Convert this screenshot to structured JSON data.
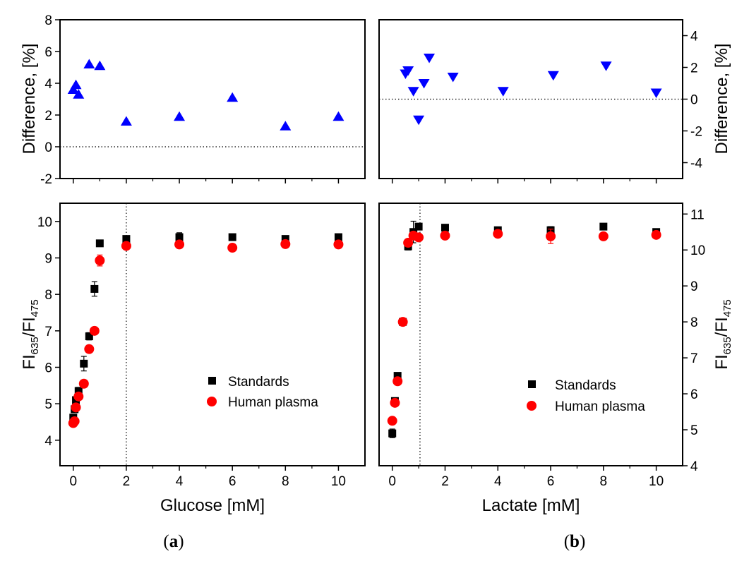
{
  "chart_data": [
    {
      "id": "a_top",
      "type": "scatter",
      "ylabel": "Difference, [%]",
      "xlim": [
        -0.5,
        11
      ],
      "ylim": [
        -2,
        8
      ],
      "yticks": [
        -2,
        0,
        2,
        4,
        6,
        8
      ],
      "xticks": [
        0,
        2,
        4,
        6,
        8,
        10
      ],
      "ref_hline": 0,
      "series": [
        {
          "name": "Difference",
          "marker": "triangle-up",
          "color": "#0000ff",
          "x": [
            0,
            0.1,
            0.2,
            0.6,
            1,
            2,
            4,
            6,
            8,
            10
          ],
          "y": [
            3.6,
            3.9,
            3.3,
            5.2,
            5.1,
            1.6,
            1.9,
            3.1,
            1.3,
            1.9
          ]
        }
      ]
    },
    {
      "id": "b_top",
      "type": "scatter",
      "ylabel": "Difference, [%]",
      "xlim": [
        -0.5,
        11
      ],
      "ylim": [
        -5,
        5
      ],
      "yticks": [
        -4,
        -2,
        0,
        2,
        4
      ],
      "xticks": [
        0,
        2,
        4,
        6,
        8,
        10
      ],
      "ref_hline": 0,
      "series": [
        {
          "name": "Difference",
          "marker": "triangle-down",
          "color": "#0000ff",
          "x": [
            0.5,
            0.6,
            0.8,
            1.0,
            1.2,
            1.4,
            2.3,
            4.2,
            6.1,
            8.1,
            10
          ],
          "y": [
            1.6,
            1.8,
            0.5,
            -1.3,
            1.0,
            2.6,
            1.4,
            0.5,
            1.5,
            2.1,
            0.4
          ]
        }
      ]
    },
    {
      "id": "a_bottom",
      "type": "scatter",
      "xlabel": "Glucose [mM]",
      "ylabel": "FI635/FI475",
      "xlim": [
        -0.5,
        11
      ],
      "ylim": [
        3.3,
        10.5
      ],
      "yticks": [
        4,
        5,
        6,
        7,
        8,
        9,
        10
      ],
      "xticks": [
        0,
        2,
        4,
        6,
        8,
        10
      ],
      "ref_vline": 2,
      "legend": "bottom-right",
      "series": [
        {
          "name": "Standards",
          "marker": "square",
          "color": "#000000",
          "x": [
            0,
            0.05,
            0.1,
            0.2,
            0.4,
            0.6,
            0.8,
            1,
            2,
            4,
            6,
            8,
            10
          ],
          "y": [
            4.62,
            4.85,
            5.1,
            5.35,
            6.1,
            6.85,
            8.15,
            9.4,
            9.52,
            9.57,
            9.57,
            9.52,
            9.57
          ],
          "err": [
            0.05,
            0.05,
            0.08,
            0.1,
            0.2,
            0.1,
            0.2,
            0.05,
            0.05,
            0.12,
            0.05,
            0.05,
            0.05
          ]
        },
        {
          "name": "Human plasma",
          "marker": "circle",
          "color": "#ff0000",
          "x": [
            0,
            0.05,
            0.1,
            0.2,
            0.4,
            0.6,
            0.8,
            1,
            2,
            4,
            6,
            8,
            10
          ],
          "y": [
            4.47,
            4.52,
            4.9,
            5.2,
            5.55,
            6.5,
            7.0,
            8.93,
            9.33,
            9.37,
            9.28,
            9.38,
            9.37
          ],
          "err": [
            0.05,
            0.05,
            0.05,
            0.05,
            0.05,
            0.05,
            0.05,
            0.15,
            0.1,
            0.05,
            0.05,
            0.08,
            0.05
          ]
        }
      ]
    },
    {
      "id": "b_bottom",
      "type": "scatter",
      "xlabel": "Lactate [mM]",
      "ylabel": "FI635/FI475",
      "xlim": [
        -0.5,
        11
      ],
      "ylim": [
        4,
        11.3
      ],
      "yticks": [
        4,
        5,
        6,
        7,
        8,
        9,
        10,
        11
      ],
      "xticks": [
        0,
        2,
        4,
        6,
        8,
        10
      ],
      "ref_vline": 1.05,
      "legend": "bottom-right",
      "series": [
        {
          "name": "Standards",
          "marker": "square",
          "color": "#000000",
          "x": [
            0,
            0.1,
            0.2,
            0.4,
            0.6,
            0.8,
            1,
            2,
            4,
            6,
            8,
            10
          ],
          "y": [
            4.9,
            5.8,
            6.5,
            8.0,
            10.1,
            10.5,
            10.65,
            10.62,
            10.55,
            10.55,
            10.65,
            10.5
          ],
          "err": [
            0.12,
            0.05,
            0.05,
            0.05,
            0.1,
            0.3,
            0.05,
            0.05,
            0.05,
            0.1,
            0.05,
            0.05
          ]
        },
        {
          "name": "Human plasma",
          "marker": "circle",
          "color": "#ff0000",
          "x": [
            0,
            0.1,
            0.2,
            0.4,
            0.6,
            0.8,
            1,
            2,
            4,
            6,
            8,
            10
          ],
          "y": [
            5.25,
            5.75,
            6.35,
            8.0,
            10.2,
            10.4,
            10.35,
            10.4,
            10.45,
            10.38,
            10.38,
            10.42
          ],
          "err": [
            0.05,
            0.05,
            0.05,
            0.05,
            0.05,
            0.05,
            0.05,
            0.1,
            0.05,
            0.2,
            0.05,
            0.05
          ]
        }
      ]
    }
  ],
  "axis_labels": {
    "ylabel_diff": "Difference, [%]",
    "ylabel_fi_main": "FI",
    "ylabel_fi_sub1": "635",
    "ylabel_fi_slash": "/FI",
    "ylabel_fi_sub2": "475",
    "xlabel_glucose": "Glucose [mM]",
    "xlabel_lactate": "Lactate [mM]"
  },
  "legend": {
    "standards": "Standards",
    "human_plasma": "Human plasma"
  },
  "captions": {
    "a_open": "(",
    "a_letter": "a",
    "a_close": ")",
    "b_open": "(",
    "b_letter": "b",
    "b_close": ")"
  },
  "colors": {
    "standards": "#000000",
    "plasma": "#ff0000",
    "difference": "#0000ff"
  }
}
